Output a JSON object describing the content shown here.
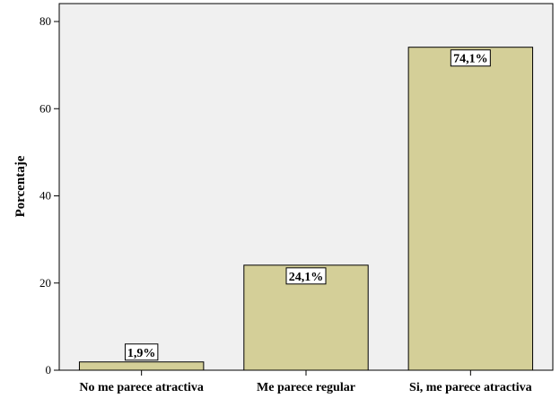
{
  "chart_data": {
    "type": "bar",
    "categories": [
      "No me parece atractiva",
      "Me parece regular",
      "Si, me parece atractiva"
    ],
    "values": [
      1.9,
      24.1,
      74.1
    ],
    "data_labels": [
      "1,9%",
      "24,1%",
      "74,1%"
    ],
    "title": "",
    "xlabel": "",
    "ylabel": "Porcentaje",
    "ylim": [
      0,
      80
    ],
    "yticks": [
      0,
      20,
      40,
      60,
      80
    ],
    "grid": false,
    "colors": {
      "bar_fill": "#d4cf98",
      "bar_stroke": "#000000",
      "plot_background": "#f0f0f0",
      "label_box": "#ffffff"
    }
  }
}
